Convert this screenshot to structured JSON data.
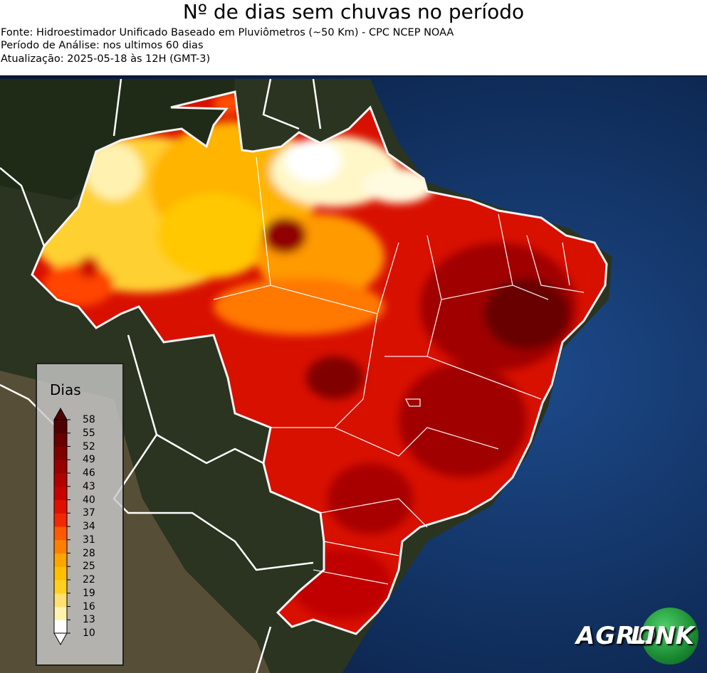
{
  "header": {
    "title": "Nº de dias sem chuvas no período",
    "source": "Fonte: Hidroestimador Unificado Baseado em Pluviômetros (~50 Km) - CPC NCEP NOAA",
    "period": "Período de Análise: nos ultimos 60 dias",
    "updated": "Atualização: 2025-05-18 às 12H (GMT-3)"
  },
  "legend": {
    "title": "Dias",
    "ticks": [
      "58",
      "55",
      "52",
      "49",
      "46",
      "43",
      "40",
      "37",
      "34",
      "31",
      "28",
      "25",
      "22",
      "19",
      "16",
      "13",
      "10"
    ],
    "colors": [
      "#fefefe",
      "#fff3b0",
      "#ffe070",
      "#ffd020",
      "#ffc000",
      "#ffa500",
      "#ff8000",
      "#ff5a00",
      "#f22800",
      "#e01000",
      "#c80000",
      "#b00000",
      "#980000",
      "#800000",
      "#680000",
      "#500000"
    ]
  },
  "logo": {
    "part1": "AGRO",
    "part2": "LINK",
    "colors": {
      "green": "#1a8a32"
    }
  },
  "map": {
    "ocean_color": "#0b2a5a",
    "land_color": "#2e3a1c",
    "border_color": "#ffffff"
  }
}
